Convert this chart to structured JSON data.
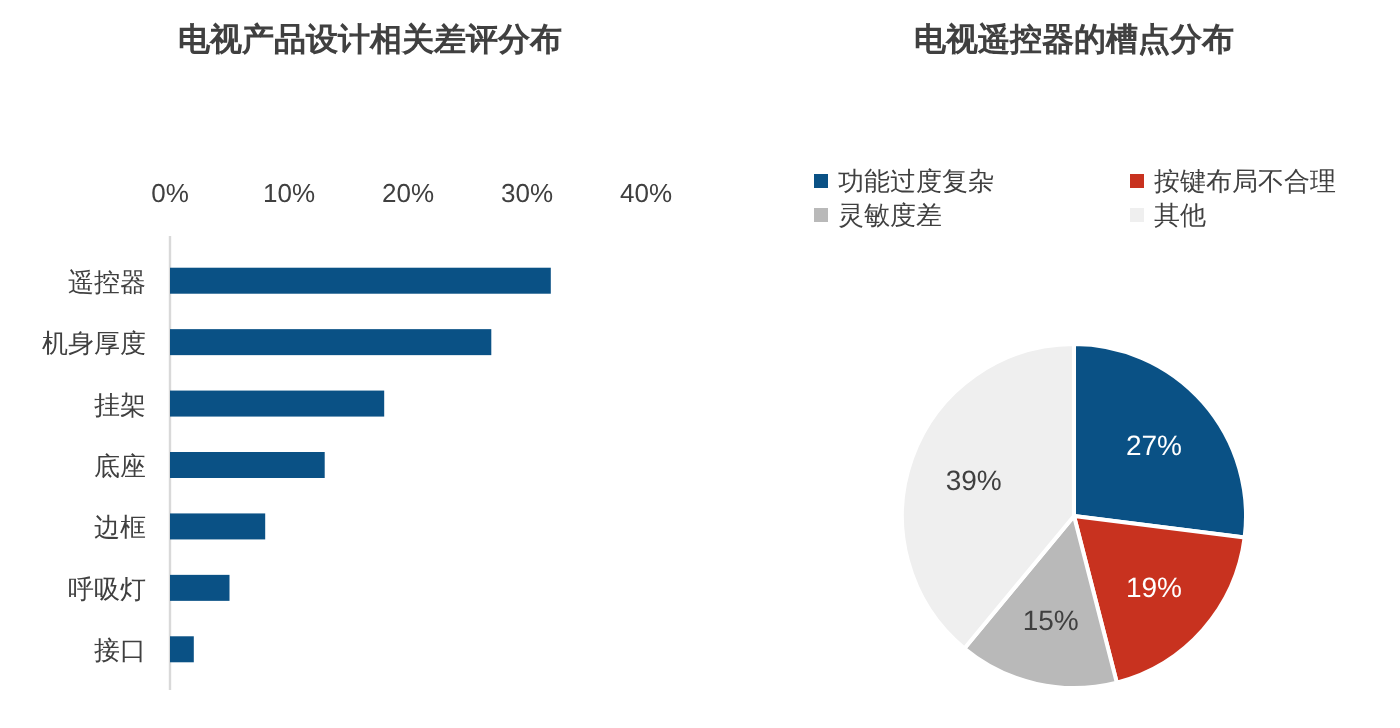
{
  "chart_data": [
    {
      "type": "bar",
      "orientation": "horizontal",
      "title": "电视产品设计相关差评分布",
      "categories": [
        "遥控器",
        "机身厚度",
        "挂架",
        "底座",
        "边框",
        "呼吸灯",
        "接口"
      ],
      "values": [
        32,
        27,
        18,
        13,
        8,
        5,
        2
      ],
      "color": "#0a5185",
      "xlim": [
        0,
        40
      ],
      "xticks": [
        {
          "value": 0,
          "label": "0%"
        },
        {
          "value": 10,
          "label": "10%"
        },
        {
          "value": 20,
          "label": "20%"
        },
        {
          "value": 30,
          "label": "30%"
        },
        {
          "value": 40,
          "label": "40%"
        }
      ],
      "grid": false
    },
    {
      "type": "pie",
      "title": "电视遥控器的槽点分布",
      "categories": [
        "功能过度复杂",
        "按键布局不合理",
        "灵敏度差",
        "其他"
      ],
      "values": [
        27,
        19,
        15,
        39
      ],
      "colors": [
        "#0a5185",
        "#c8321f",
        "#b9b9b9",
        "#efefef"
      ],
      "value_labels": [
        "27%",
        "19%",
        "15%",
        "39%"
      ],
      "legend": "top"
    }
  ]
}
